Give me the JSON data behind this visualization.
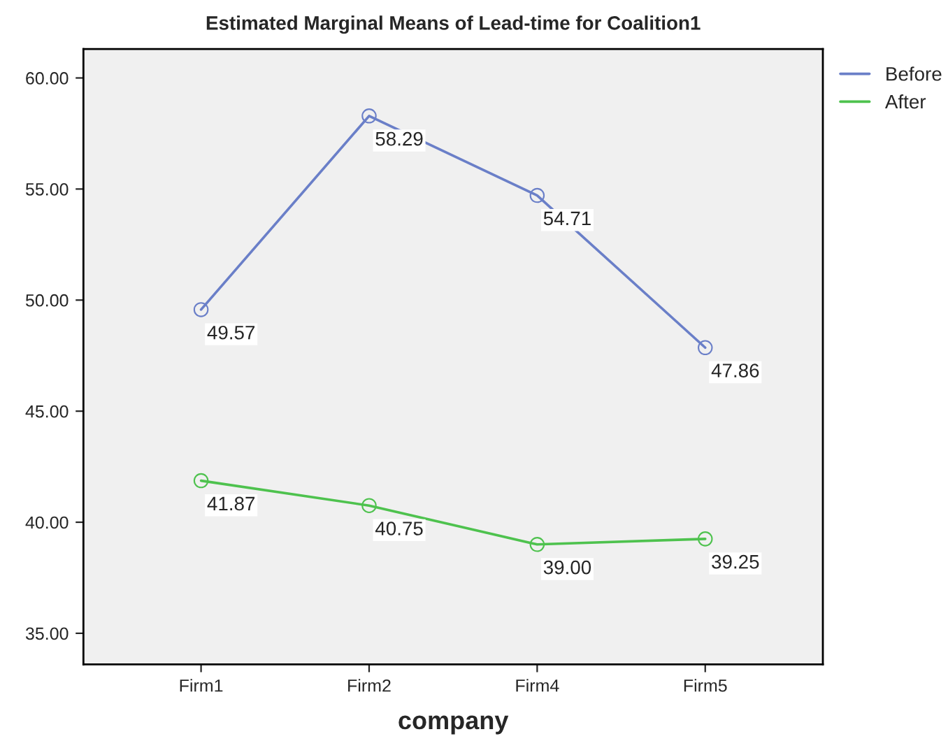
{
  "chart_data": {
    "type": "line",
    "title": "Estimated Marginal Means of Lead-time for Coalition1",
    "xlabel": "company",
    "categories": [
      "Firm1",
      "Firm2",
      "Firm4",
      "Firm5"
    ],
    "series": [
      {
        "name": "Before",
        "color": "#6a7fc8",
        "values": [
          49.57,
          58.29,
          54.71,
          47.86
        ],
        "value_labels": [
          "49.57",
          "58.29",
          "54.71",
          "47.86"
        ]
      },
      {
        "name": "After",
        "color": "#4ec24e",
        "values": [
          41.87,
          40.75,
          39.0,
          39.25
        ],
        "value_labels": [
          "41.87",
          "40.75",
          "39.00",
          "39.25"
        ]
      }
    ],
    "ylim": [
      33.6,
      61.3
    ],
    "yticks": [
      {
        "value": 35,
        "label": "35.00"
      },
      {
        "value": 40,
        "label": "40.00"
      },
      {
        "value": 45,
        "label": "45.00"
      },
      {
        "value": 50,
        "label": "50.00"
      },
      {
        "value": 55,
        "label": "55.00"
      },
      {
        "value": 60,
        "label": "60.00"
      }
    ],
    "marker": "circle",
    "legend": "top right",
    "grid": false
  }
}
